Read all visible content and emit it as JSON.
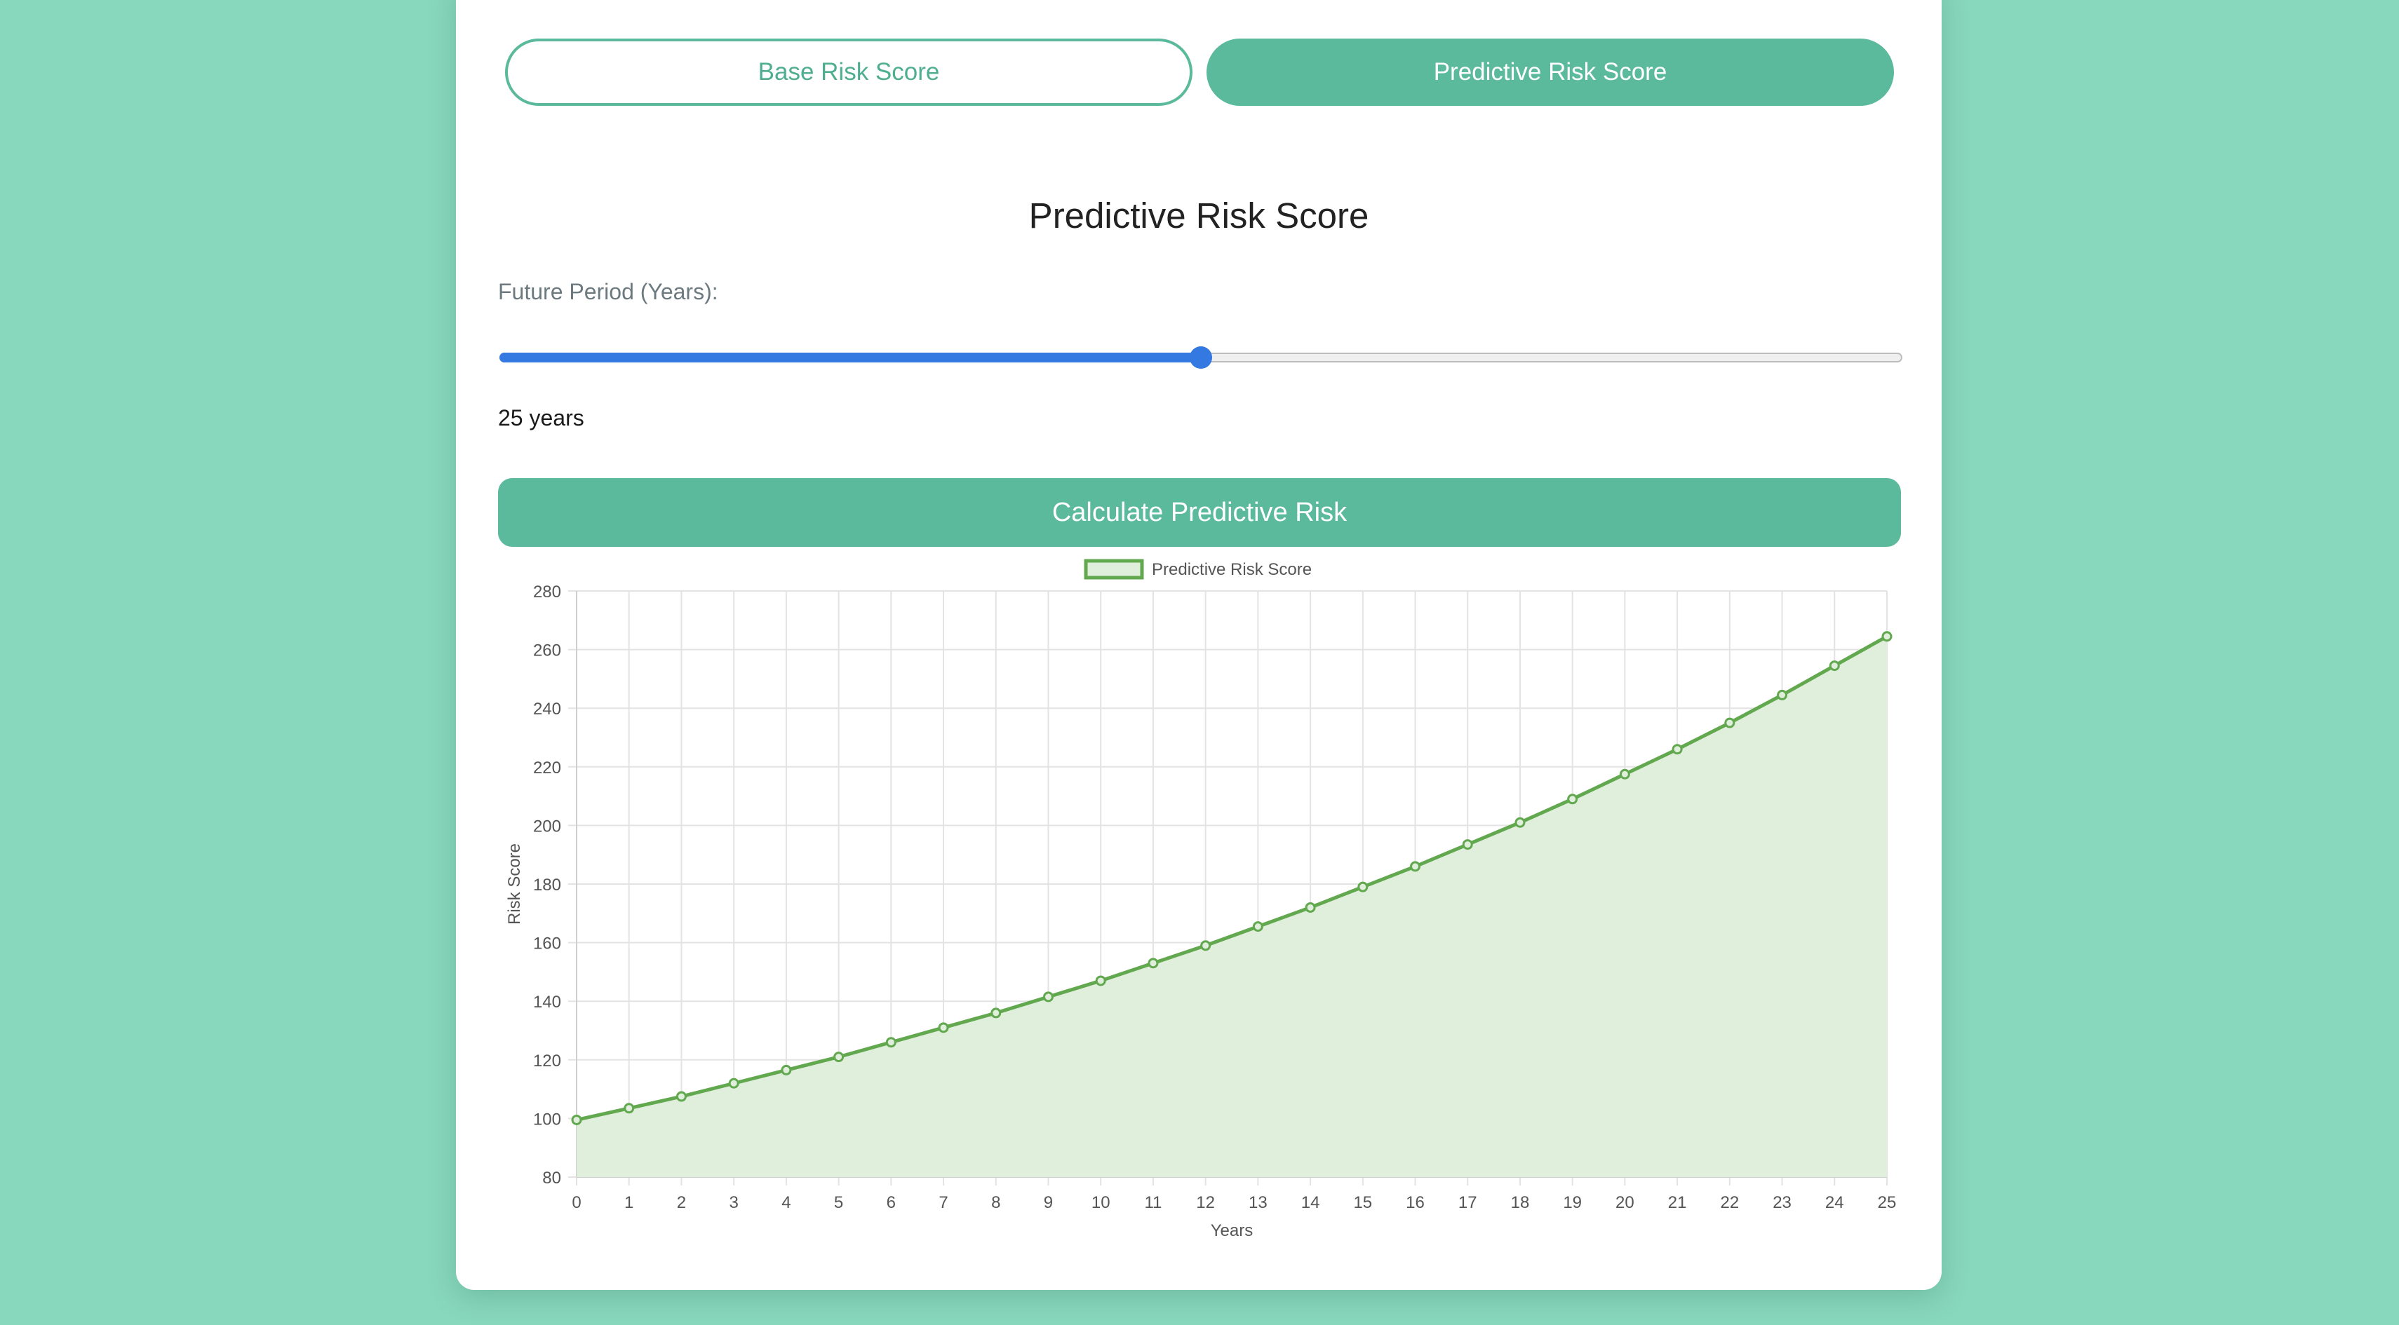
{
  "tabs": {
    "base_label": "Base Risk Score",
    "predictive_label": "Predictive Risk Score",
    "active": "predictive"
  },
  "section_title": "Predictive Risk Score",
  "period": {
    "label": "Future Period (Years):",
    "value_text": "25 years",
    "slider_fraction": 0.5
  },
  "calculate_button": "Calculate Predictive Risk",
  "colors": {
    "accent": "#5bb99c",
    "slider": "#3478e2",
    "series_line": "#62a84f",
    "series_fill": "#e0eedc"
  },
  "chart_data": {
    "type": "line",
    "legend": [
      "Predictive Risk Score"
    ],
    "legend_position": "top",
    "xlabel": "Years",
    "ylabel": "Risk Score",
    "x": [
      0,
      1,
      2,
      3,
      4,
      5,
      6,
      7,
      8,
      9,
      10,
      11,
      12,
      13,
      14,
      15,
      16,
      17,
      18,
      19,
      20,
      21,
      22,
      23,
      24,
      25
    ],
    "ylim": [
      80,
      280
    ],
    "yticks": [
      80,
      100,
      120,
      140,
      160,
      180,
      200,
      220,
      240,
      260,
      280
    ],
    "grid": true,
    "filled": true,
    "series": [
      {
        "name": "Predictive Risk Score",
        "values": [
          99.5,
          103.5,
          107.5,
          112,
          116.5,
          121,
          126,
          131,
          136,
          141.5,
          147,
          153,
          159,
          165.5,
          172,
          179,
          186,
          193.5,
          201,
          209,
          217.5,
          226,
          235,
          244.5,
          254.5,
          264.5
        ]
      }
    ]
  }
}
